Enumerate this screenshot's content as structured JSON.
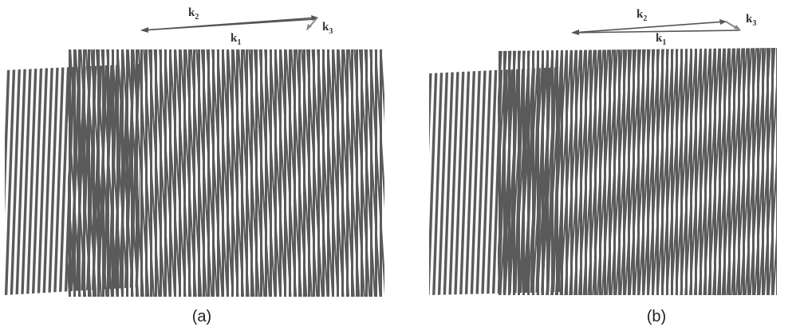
{
  "panels": [
    {
      "id": "a",
      "caption": "(a)",
      "vectors": {
        "k1": "k",
        "k1_sub": "1",
        "k2": "k",
        "k2_sub": "2",
        "k3": "k",
        "k3_sub": "3"
      }
    },
    {
      "id": "b",
      "caption": "(b)",
      "vectors": {
        "k1": "k",
        "k1_sub": "1",
        "k2": "k",
        "k2_sub": "2",
        "k3": "k",
        "k3_sub": "3"
      }
    }
  ],
  "colors": {
    "stripe": "#5a5a5a",
    "vector": "#555555",
    "background": "#ffffff"
  }
}
